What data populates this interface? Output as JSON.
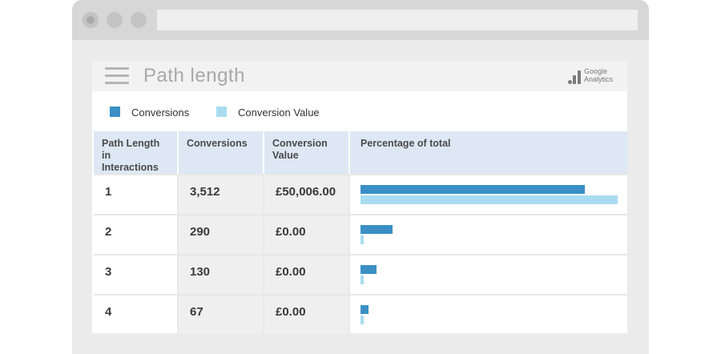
{
  "colors": {
    "conversions": "#3a8fc5",
    "conversion_value": "#a9dcf0",
    "header_bg": "#dde8f4"
  },
  "header": {
    "title": "Path length",
    "menu_icon": "hamburger-icon",
    "logo": {
      "line1": "Google",
      "line2": "Analytics"
    }
  },
  "legend": [
    {
      "label": "Conversions",
      "color": "#3a8fc5"
    },
    {
      "label": "Conversion Value",
      "color": "#a9dcf0"
    }
  ],
  "table": {
    "columns": [
      "Path Length in Interactions",
      "Conversions",
      "Conversion Value",
      "Percentage of total"
    ],
    "rows": [
      {
        "path_length": "1",
        "conversions": "3,512",
        "value": "£50,006.00",
        "conv_pct": 87.2,
        "value_pct": 100
      },
      {
        "path_length": "2",
        "conversions": "290",
        "value": "£0.00",
        "conv_pct": 12.4,
        "value_pct": 1
      },
      {
        "path_length": "3",
        "conversions": "130",
        "value": "£0.00",
        "conv_pct": 6.2,
        "value_pct": 1
      },
      {
        "path_length": "4",
        "conversions": "67",
        "value": "£0.00",
        "conv_pct": 3.1,
        "value_pct": 1
      }
    ]
  }
}
